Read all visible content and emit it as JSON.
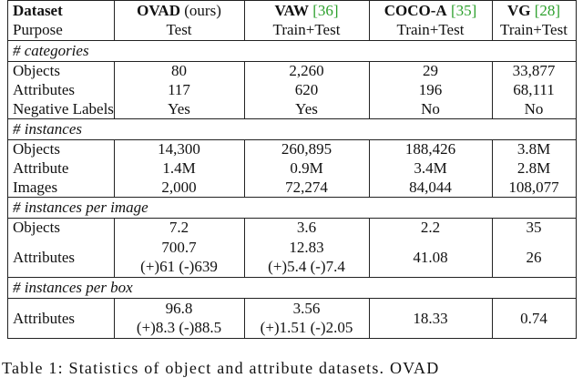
{
  "table": {
    "header": {
      "label": "Dataset",
      "purpose_label": "Purpose",
      "datasets": [
        {
          "name": "OVAD",
          "note": "(ours)",
          "purpose": "Test"
        },
        {
          "name": "VAW",
          "cite": "[36]",
          "purpose": "Train+Test"
        },
        {
          "name": "COCO-A",
          "cite": "[35]",
          "purpose": "Train+Test"
        },
        {
          "name": "VG",
          "cite": "[28]",
          "purpose": "Train+Test"
        }
      ]
    },
    "sections": [
      {
        "title": "# categories",
        "rows": [
          {
            "label": "Objects",
            "cells": [
              [
                "80"
              ],
              [
                "2,260"
              ],
              [
                "29"
              ],
              [
                "33,877"
              ]
            ]
          },
          {
            "label": "Attributes",
            "cells": [
              [
                "117"
              ],
              [
                "620"
              ],
              [
                "196"
              ],
              [
                "68,111"
              ]
            ]
          },
          {
            "label": "Negative Labels",
            "cells": [
              [
                "Yes"
              ],
              [
                "Yes"
              ],
              [
                "No"
              ],
              [
                "No"
              ]
            ]
          }
        ]
      },
      {
        "title": "# instances",
        "rows": [
          {
            "label": "Objects",
            "cells": [
              [
                "14,300"
              ],
              [
                "260,895"
              ],
              [
                "188,426"
              ],
              [
                "3.8M"
              ]
            ]
          },
          {
            "label": "Attribute",
            "cells": [
              [
                "1.4M"
              ],
              [
                "0.9M"
              ],
              [
                "3.4M"
              ],
              [
                "2.8M"
              ]
            ]
          },
          {
            "label": "Images",
            "cells": [
              [
                "2,000"
              ],
              [
                "72,274"
              ],
              [
                "84,044"
              ],
              [
                "108,077"
              ]
            ]
          }
        ]
      },
      {
        "title": "# instances per image",
        "rows": [
          {
            "label": "Objects",
            "cells": [
              [
                "7.2"
              ],
              [
                "3.6"
              ],
              [
                "2.2"
              ],
              [
                "35"
              ]
            ]
          },
          {
            "label": "Attributes",
            "cells": [
              [
                "700.7",
                "(+)61 (-)639"
              ],
              [
                "12.83",
                "(+)5.4 (-)7.4"
              ],
              [
                "41.08"
              ],
              [
                "26"
              ]
            ]
          }
        ]
      },
      {
        "title": "# instances per box",
        "rows": [
          {
            "label": "Attributes",
            "cells": [
              [
                "96.8",
                "(+)8.3 (-)88.5"
              ],
              [
                "3.56",
                "(+)1.51 (-)2.05"
              ],
              [
                "18.33"
              ],
              [
                "0.74"
              ]
            ]
          }
        ]
      }
    ],
    "caption": "Table 1: Statistics of object and attribute datasets. OVAD"
  }
}
